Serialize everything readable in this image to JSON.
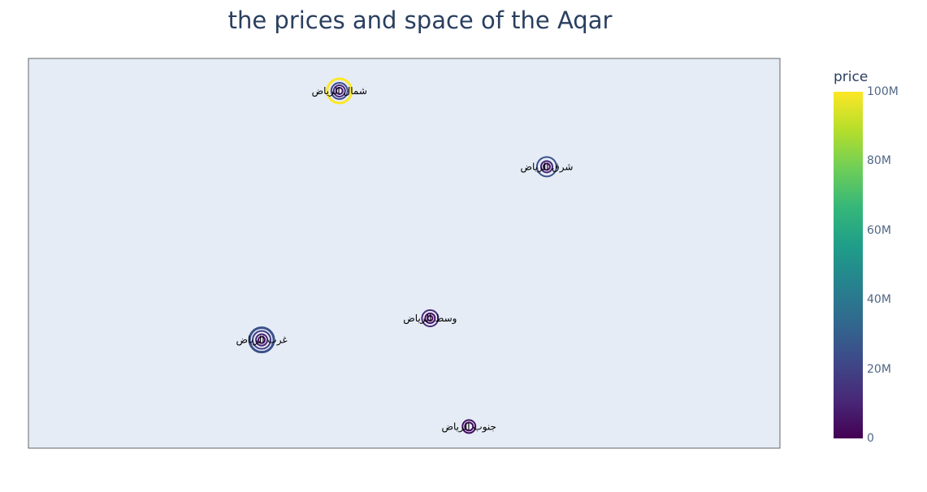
{
  "chart_data": {
    "type": "scatter",
    "title": "the prices and space of the Aqar",
    "xlabel": "",
    "ylabel": "",
    "grid": false,
    "colorbar": {
      "title": "price",
      "range": [
        0,
        100000000
      ],
      "ticks": [
        "0",
        "20M",
        "40M",
        "60M",
        "80M",
        "100M"
      ],
      "tick_values": [
        0,
        20000000,
        40000000,
        60000000,
        80000000,
        100000000
      ],
      "colorscale": [
        "#440154",
        "#482878",
        "#3e4989",
        "#31688e",
        "#26828e",
        "#1f9e89",
        "#35b779",
        "#6ece58",
        "#b5de2b",
        "#fde725"
      ]
    },
    "points": [
      {
        "label": "شمال الرياض",
        "lon": 46.64,
        "lat": 24.83,
        "rings": [
          {
            "price": 100000000,
            "size": 15
          },
          {
            "price": 22000000,
            "size": 10
          },
          {
            "price": 12000000,
            "size": 7
          },
          {
            "price": 6000000,
            "size": 4
          }
        ]
      },
      {
        "label": "شرق الرياض",
        "lon": 46.8,
        "lat": 24.76,
        "rings": [
          {
            "price": 25000000,
            "size": 12
          },
          {
            "price": 10000000,
            "size": 7
          },
          {
            "price": 5000000,
            "size": 4
          }
        ]
      },
      {
        "label": "وسط الرياض",
        "lon": 46.71,
        "lat": 24.62,
        "rings": [
          {
            "price": 12000000,
            "size": 10
          },
          {
            "price": 5000000,
            "size": 6
          },
          {
            "price": 2000000,
            "size": 3
          }
        ]
      },
      {
        "label": "غرب الرياض",
        "lon": 46.58,
        "lat": 24.6,
        "rings": [
          {
            "price": 25000000,
            "size": 15
          },
          {
            "price": 18000000,
            "size": 11
          },
          {
            "price": 10000000,
            "size": 7
          },
          {
            "price": 4000000,
            "size": 4
          }
        ]
      },
      {
        "label": "جنوب الرياض",
        "lon": 46.74,
        "lat": 24.52,
        "rings": [
          {
            "price": 4000000,
            "size": 8
          },
          {
            "price": 2000000,
            "size": 5
          }
        ]
      }
    ],
    "lon_range": [
      46.4,
      46.98
    ],
    "lat_range": [
      24.5,
      24.86
    ]
  }
}
